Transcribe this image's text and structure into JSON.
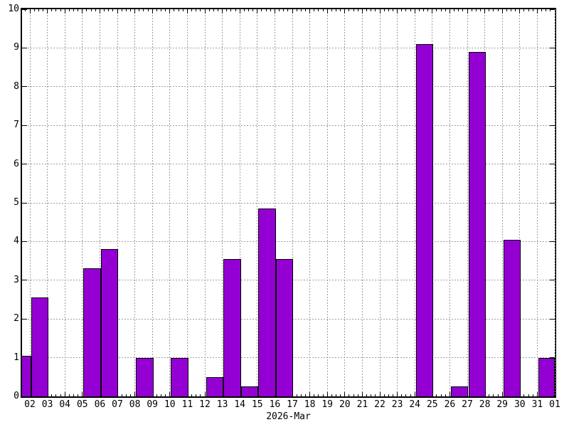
{
  "chart_data": {
    "type": "bar",
    "title": "",
    "xlabel": "2026-Mar",
    "ylabel": "",
    "ylim": [
      0,
      10
    ],
    "y_ticks": [
      0,
      1,
      2,
      3,
      4,
      5,
      6,
      7,
      8,
      9,
      10
    ],
    "x_tick_labels": [
      "02",
      "03",
      "04",
      "05",
      "06",
      "07",
      "08",
      "09",
      "10",
      "11",
      "12",
      "13",
      "14",
      "15",
      "16",
      "17",
      "18",
      "19",
      "20",
      "21",
      "22",
      "23",
      "24",
      "25",
      "26",
      "27",
      "28",
      "29",
      "30",
      "31",
      "01"
    ],
    "grid": true,
    "legend": false,
    "minor_ticks_per_day": 4,
    "bars": [
      {
        "day": 1,
        "label": "01",
        "value": 1.05,
        "clipped_left": true
      },
      {
        "day": 2,
        "label": "02",
        "value": 2.55
      },
      {
        "day": 5,
        "label": "05",
        "value": 3.3
      },
      {
        "day": 6,
        "label": "06",
        "value": 3.8
      },
      {
        "day": 8,
        "label": "08",
        "value": 1.0
      },
      {
        "day": 10,
        "label": "10",
        "value": 1.0
      },
      {
        "day": 12,
        "label": "12",
        "value": 0.5
      },
      {
        "day": 13,
        "label": "13",
        "value": 3.55
      },
      {
        "day": 14,
        "label": "14",
        "value": 0.25
      },
      {
        "day": 15,
        "label": "15",
        "value": 4.85
      },
      {
        "day": 16,
        "label": "16",
        "value": 3.55
      },
      {
        "day": 24,
        "label": "24",
        "value": 9.1
      },
      {
        "day": 26,
        "label": "26",
        "value": 0.25
      },
      {
        "day": 27,
        "label": "27",
        "value": 8.9
      },
      {
        "day": 29,
        "label": "29",
        "value": 4.05
      },
      {
        "day": 31,
        "label": "31",
        "value": 1.0
      }
    ],
    "colors": {
      "bar_fill": "#9400d3",
      "bar_border": "#000000",
      "grid": "#9e9e9e",
      "axis": "#000000",
      "background": "#ffffff",
      "text": "#000000"
    }
  }
}
